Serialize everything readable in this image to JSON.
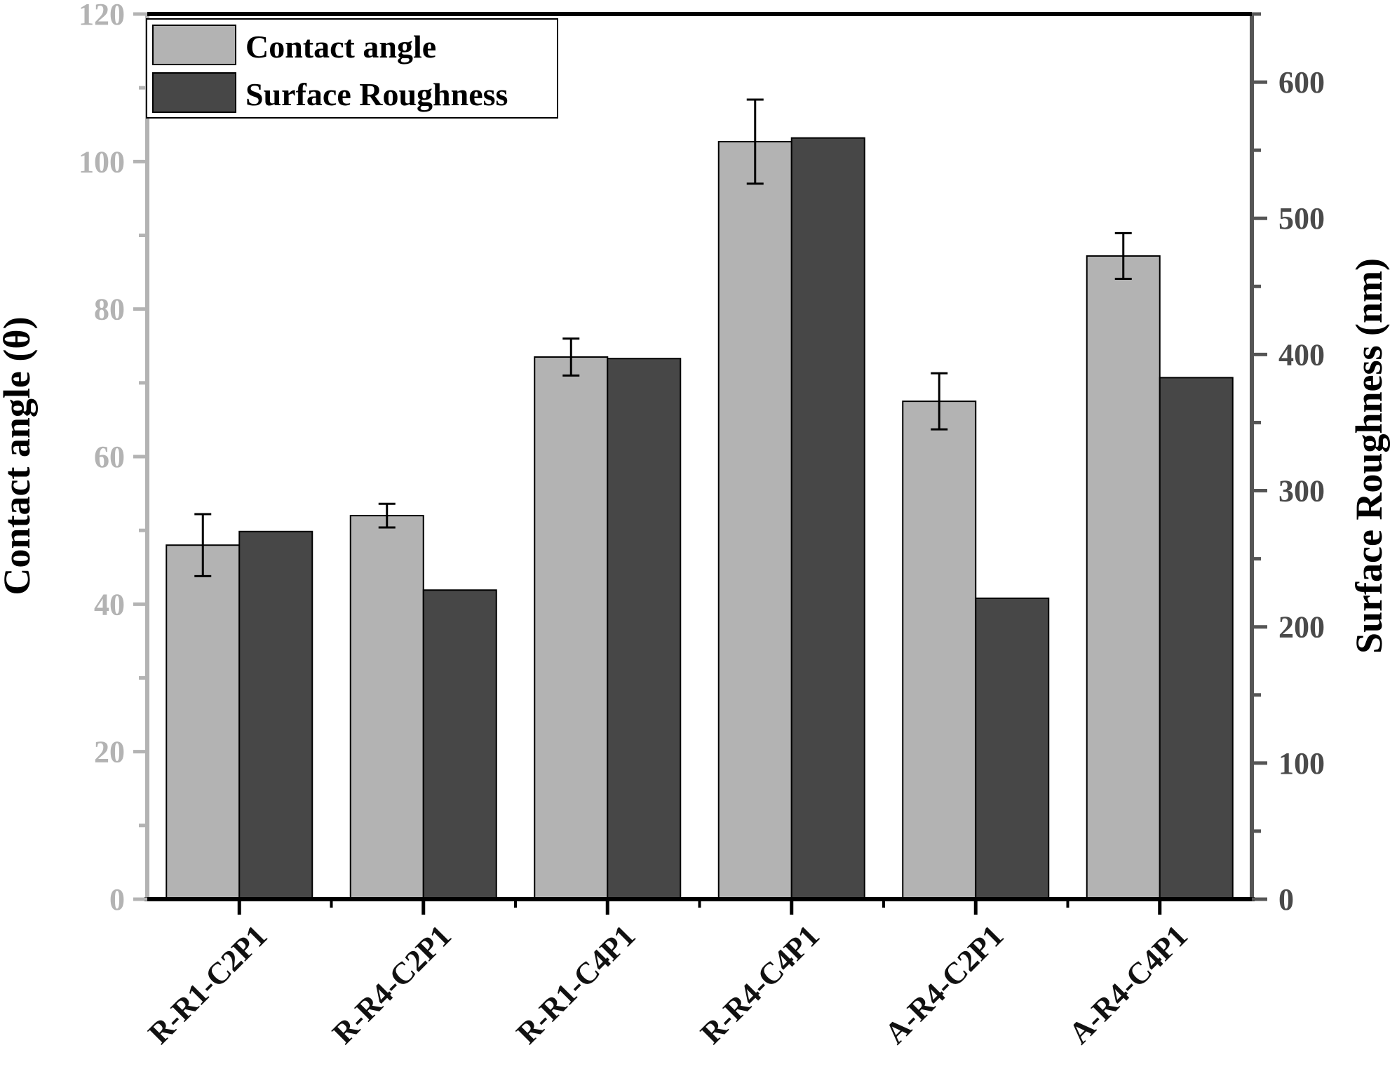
{
  "chart_data": {
    "type": "bar",
    "categories": [
      "R-R1-C2P1",
      "R-R4-C2P1",
      "R-R1-C4P1",
      "R-R4-C4P1",
      "A-R4-C2P1",
      "A-R4-C4P1"
    ],
    "series": [
      {
        "name": "Contact angle",
        "axis": "left",
        "color": "#b3b3b3",
        "values": [
          48.0,
          52.0,
          73.5,
          102.7,
          67.5,
          87.2
        ],
        "errors": [
          4.2,
          1.6,
          2.5,
          5.7,
          3.8,
          3.1
        ]
      },
      {
        "name": "Surface Roughness",
        "axis": "right",
        "color": "#474747",
        "values": [
          270,
          227,
          397,
          559,
          221,
          383
        ]
      }
    ],
    "ylabel_left": "Contact angle (θ)",
    "ylabel_right": "Surface Roughness (nm)",
    "ylim_left": [
      0,
      120
    ],
    "ylim_right": [
      0,
      650
    ],
    "yticks_left": [
      "0",
      "20",
      "40",
      "60",
      "80",
      "100",
      "120"
    ],
    "yticks_right": [
      "0",
      "100",
      "200",
      "300",
      "400",
      "500",
      "600"
    ],
    "left_axis_color": "#b3b3b3",
    "right_axis_color": "#555555",
    "legend_position": "top-left",
    "grid": false
  }
}
